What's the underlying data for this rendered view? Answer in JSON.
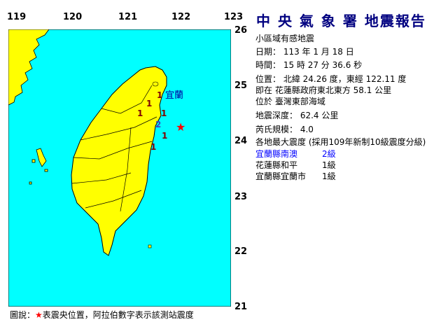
{
  "axes": {
    "lon_ticks": [
      "119",
      "120",
      "121",
      "122",
      "123"
    ],
    "lat_ticks": [
      "26",
      "25",
      "24",
      "23",
      "22",
      "21"
    ]
  },
  "colors": {
    "sea": "#00ffff",
    "land": "#ffff00",
    "epicenter": "#ff0000",
    "title": "#000080",
    "highlight": "#0000ff"
  },
  "report": {
    "title": "中 央 氣 象 署 地震報告",
    "subtitle": "小區域有感地震",
    "date": "日期： 113 年 1 月 18 日",
    "time": "時間： 15 時 27 分 36.6 秒",
    "location": "位置： 北緯 24.26 度，東經 122.11 度",
    "relative": "即在 花蓮縣政府東北東方 58.1 公里",
    "region": "位於 臺灣東部海域",
    "depth": "地震深度： 62.4 公里",
    "magnitude": "芮氏規模： 4.0",
    "intensity_header": "各地最大震度 (採用109年新制10級震度分級)",
    "intensities": [
      {
        "place": "宜蘭縣南澳",
        "level": "2級"
      },
      {
        "place": "花蓮縣和平",
        "level": "1級"
      },
      {
        "place": "宜蘭縣宜蘭市",
        "level": "1級"
      }
    ]
  },
  "map": {
    "city_label": "宜蘭",
    "epicenter": {
      "lat": 24.26,
      "lon": 122.11
    },
    "stations": [
      "1",
      "1",
      "1",
      "1",
      "2",
      "1",
      "1"
    ]
  },
  "legend": {
    "prefix": "圖說：",
    "star": "★",
    "text": "表震央位置，阿拉伯數字表示該測站震度"
  }
}
